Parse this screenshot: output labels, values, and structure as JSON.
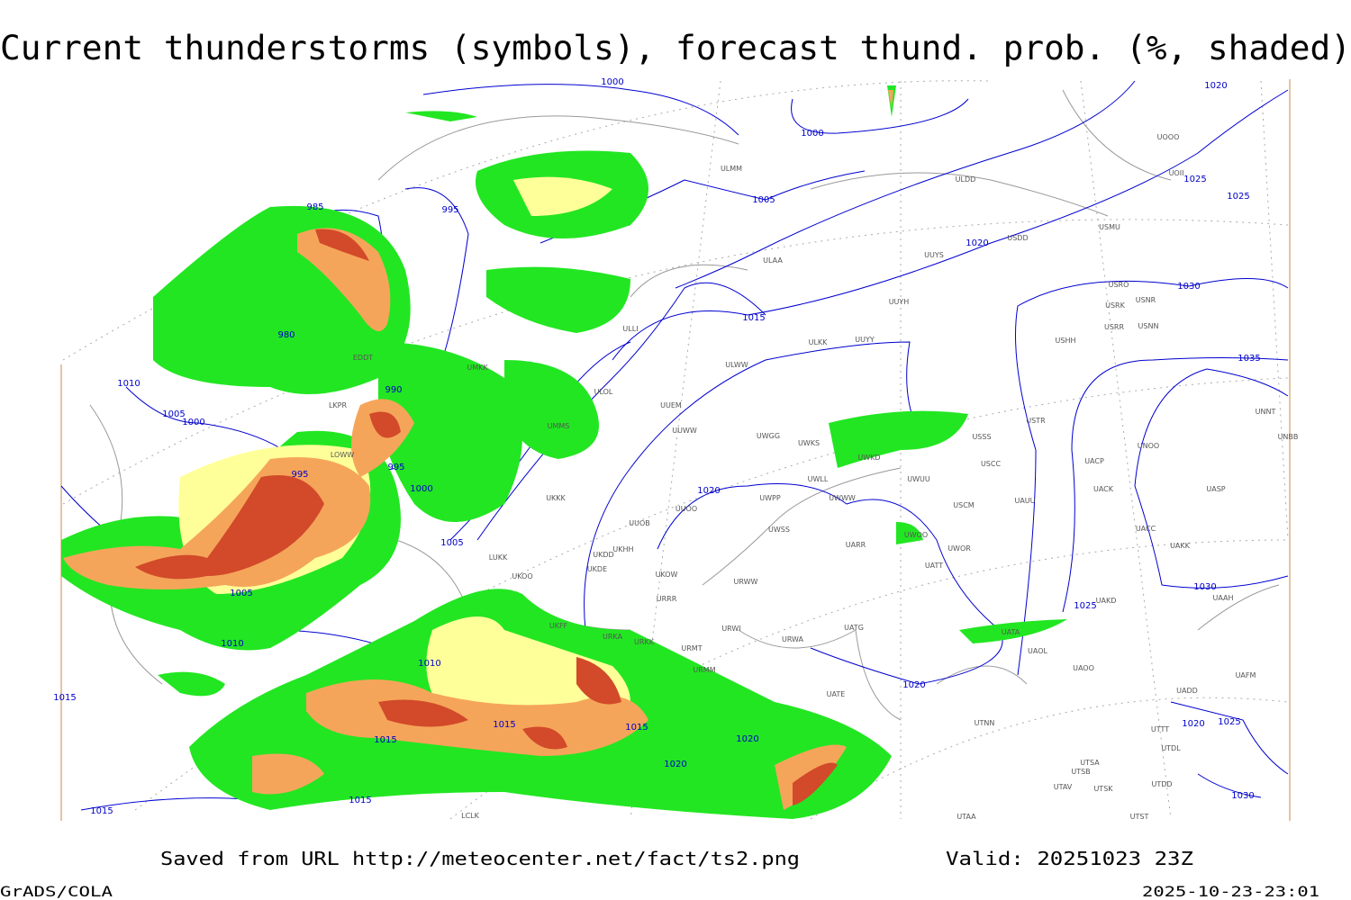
{
  "header": {
    "title": "Current thunderstorms (symbols), forecast thund. prob. (%, shaded)"
  },
  "footer": {
    "source": "Saved from URL http://meteocenter.net/fact/ts2.png",
    "valid": "Valid: 20251023 23Z",
    "software": "GrADS/COLA",
    "timestamp": "2025-10-23-23:01"
  },
  "isobar_labels": [
    "1000",
    "1000",
    "1020",
    "995",
    "985",
    "1005",
    "1025",
    "1025",
    "1020",
    "1030",
    "1015",
    "980",
    "1035",
    "1010",
    "990",
    "1005",
    "1000",
    "995",
    "995",
    "1000",
    "1020",
    "1005",
    "1030",
    "1005",
    "1025",
    "1010",
    "1010",
    "1020",
    "1015",
    "1015",
    "1020",
    "1025",
    "1015",
    "1020",
    "1020",
    "1030",
    "1015",
    "1015",
    "1015"
  ],
  "stations": [
    "ULMM",
    "ULDD",
    "USDD",
    "USMU",
    "UUYS",
    "ULAA",
    "UUYH",
    "USRO",
    "USRK",
    "USNR",
    "USRR",
    "USNN",
    "USHH",
    "ULKK",
    "UUYY",
    "ULWW",
    "UUEM",
    "UUWW",
    "UWGG",
    "UWKS",
    "UWKD",
    "USSS",
    "USTR",
    "USCC",
    "UNOO",
    "UNNT",
    "UNBB",
    "UOOO",
    "UOII",
    "UWUU",
    "UWLL",
    "UWWW",
    "UWPP",
    "USCM",
    "UAUU",
    "UACP",
    "UACK",
    "UASP",
    "UUOB",
    "UUOO",
    "UWSS",
    "UARR",
    "UWOO",
    "UWOR",
    "UATT",
    "UACC",
    "UAKK",
    "UKHH",
    "UKDD",
    "UKDE",
    "UKOW",
    "URRR",
    "URWW",
    "UAAH",
    "UAKD",
    "URWI",
    "UATG",
    "UATA",
    "UAOL",
    "URKA",
    "URKK",
    "URMT",
    "URWA",
    "URMM",
    "UATE",
    "UAOO",
    "UAFM",
    "UADD",
    "UTNN",
    "UTTT",
    "UTDL",
    "UTSA",
    "UTSB",
    "UTAV",
    "UTSK",
    "UTDD",
    "UTST",
    "UTAA",
    "LUKK",
    "UKOO",
    "UKFF",
    "UKKK",
    "LCLK",
    "EDDT",
    "LKPR",
    "LOWW",
    "ULLI",
    "ULOL",
    "UMMS",
    "UMKK"
  ]
}
